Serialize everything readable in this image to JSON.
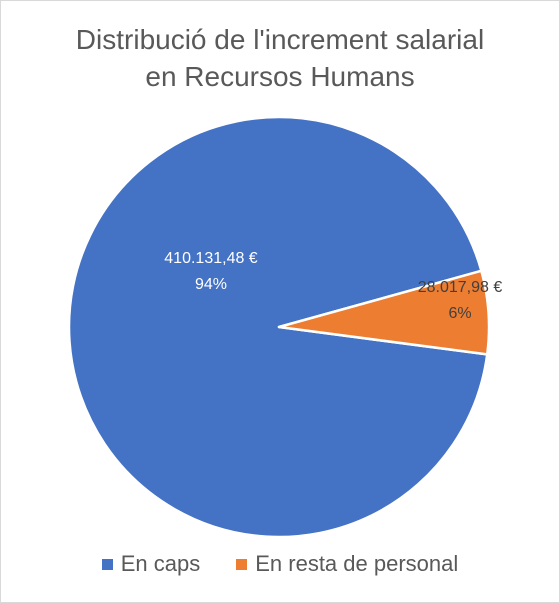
{
  "chart_data": {
    "type": "pie",
    "title": "Distribució de l'increment salarial en Recursos Humans",
    "title_lines": [
      "Distribució de l'increment salarial",
      "en Recursos Humans"
    ],
    "legend_position": "bottom",
    "slices": [
      {
        "name": "En caps",
        "value": 410131.48,
        "value_label": "410.131,48 €",
        "percent_label": "94%",
        "color": "#4472C4",
        "label_color": "#ffffff"
      },
      {
        "name": "En resta de personal",
        "value": 28017.98,
        "value_label": "28.017,98 €",
        "percent_label": "6%",
        "color": "#ED7D31",
        "label_color": "#404040"
      }
    ]
  }
}
